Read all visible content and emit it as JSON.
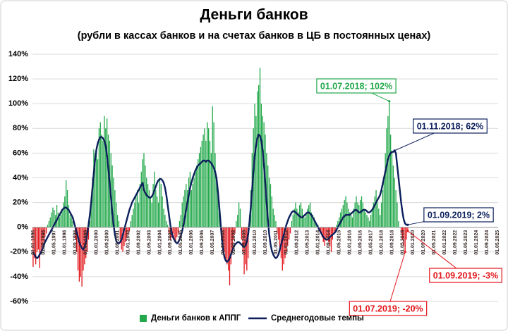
{
  "chart_data": {
    "type": "bar",
    "title": "Деньги банков",
    "subtitle": "(рубли в кассах банков и на счетах банков в ЦБ в постоянных ценах)",
    "categories": [
      "01.01.1996",
      null,
      null,
      null,
      null,
      null,
      null,
      null,
      "01.09.1996",
      null,
      null,
      null,
      null,
      null,
      null,
      null,
      "01.05.1997",
      null,
      null,
      null,
      null,
      null,
      null,
      null,
      "01.01.1998",
      null,
      null,
      null,
      null,
      null,
      null,
      null,
      "01.09.1998",
      null,
      null,
      null,
      null,
      null,
      null,
      null,
      "01.05.1999",
      null,
      null,
      null,
      null,
      null,
      null,
      null,
      "01.01.2000",
      null,
      null,
      null,
      null,
      null,
      null,
      null,
      "01.09.2000",
      null,
      null,
      null,
      null,
      null,
      null,
      null,
      "01.05.2001",
      null,
      null,
      null,
      null,
      null,
      null,
      null,
      "01.01.2002",
      null,
      null,
      null,
      null,
      null,
      null,
      null,
      "01.09.2002",
      null,
      null,
      null,
      null,
      null,
      null,
      null,
      "01.05.2003",
      null,
      null,
      null,
      null,
      null,
      null,
      null,
      "01.01.2004",
      null,
      null,
      null,
      null,
      null,
      null,
      null,
      "01.09.2004",
      null,
      null,
      null,
      null,
      null,
      null,
      null,
      "01.05.2005",
      null,
      null,
      null,
      null,
      null,
      null,
      null,
      "01.01.2006",
      null,
      null,
      null,
      null,
      null,
      null,
      null,
      "01.09.2006",
      null,
      null,
      null,
      null,
      null,
      null,
      null,
      "01.05.2007",
      null,
      null,
      null,
      null,
      null,
      null,
      null,
      "01.01.2008",
      null,
      null,
      null,
      null,
      null,
      null,
      null,
      "01.09.2008",
      null,
      null,
      null,
      null,
      null,
      null,
      null,
      "01.05.2009",
      null,
      null,
      null,
      null,
      null,
      null,
      null,
      "01.01.2010",
      null,
      null,
      null,
      null,
      null,
      null,
      null,
      "01.09.2010",
      null,
      null,
      null,
      null,
      null,
      null,
      null,
      "01.05.2011",
      null,
      null,
      null,
      null,
      null,
      null,
      null,
      "01.01.2012",
      null,
      null,
      null,
      null,
      null,
      null,
      null,
      "01.09.2012",
      null,
      null,
      null,
      null,
      null,
      null,
      null,
      "01.05.2013",
      null,
      null,
      null,
      null,
      null,
      null,
      null,
      "01.01.2014",
      null,
      null,
      null,
      null,
      null,
      null,
      null,
      "01.09.2014",
      null,
      null,
      null,
      null,
      null,
      null,
      null,
      "01.05.2015",
      null,
      null,
      null,
      null,
      null,
      null,
      null,
      "01.01.2016",
      null,
      null,
      null,
      null,
      null,
      null,
      null,
      "01.09.2016",
      null,
      null,
      null,
      null,
      null,
      null,
      null,
      "01.05.2017",
      null,
      null,
      null,
      null,
      null,
      null,
      null,
      "01.01.2018",
      null,
      null,
      null,
      null,
      null,
      null,
      null,
      "01.09.2018",
      null,
      null,
      null,
      null,
      null,
      null,
      null,
      "01.05.2019",
      null,
      null,
      null,
      null,
      null,
      null,
      null,
      "01.01.2020",
      null,
      null,
      null,
      null,
      null,
      null,
      null,
      "01.09.2020",
      null,
      null,
      null,
      null,
      null,
      null,
      null,
      "01.05.2021",
      null,
      null,
      null,
      null,
      null,
      null,
      null,
      "01.01.2022",
      null,
      null,
      null,
      null,
      null,
      null,
      null,
      "01.09.2022",
      null,
      null,
      null,
      null,
      null,
      null,
      null,
      "01.05.2023",
      null,
      null,
      null,
      null,
      null,
      null,
      null,
      "01.01.2024",
      null,
      null,
      null,
      null,
      null,
      null,
      null,
      "01.09.2024",
      null,
      null,
      null,
      null,
      null,
      null,
      null,
      "01.05.2025"
    ],
    "series": [
      {
        "name": "Деньги банков к АППГ",
        "type": "bar",
        "color": "#22a84a",
        "negative_color": "#e3151a",
        "values": [
          -32,
          -25,
          -30,
          -20,
          -18,
          -33,
          -22,
          -15,
          -12,
          -8,
          -5,
          2,
          5,
          8,
          12,
          16,
          14,
          10,
          18,
          12,
          8,
          10,
          15,
          20,
          25,
          38,
          30,
          18,
          10,
          8,
          5,
          0,
          -10,
          -20,
          -35,
          -44,
          -40,
          -48,
          -35,
          -30,
          -25,
          -20,
          -10,
          5,
          20,
          40,
          63,
          60,
          65,
          55,
          80,
          85,
          75,
          70,
          90,
          80,
          88,
          75,
          70,
          60,
          50,
          40,
          30,
          20,
          10,
          5,
          -10,
          -18,
          -20,
          -15,
          -12,
          -8,
          -5,
          -3,
          5,
          10,
          15,
          20,
          25,
          30,
          20,
          35,
          45,
          55,
          60,
          50,
          40,
          35,
          30,
          25,
          20,
          35,
          45,
          30,
          25,
          20,
          40,
          35,
          25,
          15,
          10,
          5,
          2,
          -5,
          -10,
          -8,
          -5,
          -10,
          -12,
          -8,
          -5,
          5,
          10,
          20,
          25,
          30,
          35,
          30,
          40,
          45,
          30,
          35,
          40,
          45,
          50,
          55,
          60,
          65,
          70,
          75,
          80,
          70,
          85,
          80,
          70,
          60,
          98,
          85,
          60,
          40,
          30,
          20,
          10,
          -10,
          -15,
          -20,
          -25,
          -30,
          -35,
          -47,
          -30,
          -20,
          -10,
          -5,
          5,
          10,
          20,
          15,
          -10,
          -20,
          -38,
          -30,
          -35,
          -25,
          10,
          30,
          60,
          80,
          100,
          90,
          110,
          115,
          129,
          100,
          90,
          85,
          75,
          60,
          50,
          40,
          35,
          25,
          15,
          10,
          5,
          -5,
          -10,
          -20,
          -25,
          -35,
          -30,
          -25,
          -20,
          -15,
          -10,
          -5,
          5,
          10,
          15,
          20,
          15,
          12,
          18,
          20,
          15,
          10,
          8,
          12,
          15,
          18,
          20,
          12,
          10,
          8,
          5,
          3,
          2,
          -2,
          -5,
          -8,
          -12,
          -15,
          -10,
          -8,
          -12,
          -15,
          -20,
          -10,
          -5,
          -3,
          2,
          5,
          8,
          12,
          15,
          18,
          22,
          25,
          20,
          15,
          12,
          10,
          8,
          15,
          20,
          25,
          20,
          18,
          22,
          25,
          20,
          15,
          12,
          10,
          8,
          5,
          10,
          15,
          20,
          25,
          30,
          20,
          15,
          10,
          20,
          30,
          40,
          60,
          80,
          90,
          102,
          75,
          62,
          50,
          40,
          30,
          20,
          5,
          0,
          -5,
          -10,
          -15,
          -20,
          -10,
          -3,
          null,
          null,
          null,
          null,
          null,
          null,
          null,
          null,
          null,
          null,
          null,
          null,
          null,
          null,
          null,
          null,
          null,
          null,
          null,
          null,
          null,
          null,
          null,
          null,
          null,
          null,
          null,
          null,
          null,
          null,
          null,
          null,
          null,
          null,
          null,
          null,
          null,
          null,
          null,
          null,
          null,
          null,
          null,
          null,
          null,
          null,
          null,
          null,
          null,
          null,
          null,
          null,
          null,
          null,
          null,
          null,
          null,
          null,
          null,
          null,
          null,
          null,
          null,
          null,
          null,
          null,
          null,
          null
        ]
      },
      {
        "name": "Среднегодовые темпы",
        "type": "line",
        "color": "#0c1f5c",
        "values": [
          -20,
          -22,
          -24,
          -25,
          -24,
          -22,
          -20,
          -18,
          -15,
          -12,
          -10,
          -8,
          -6,
          -4,
          -2,
          0,
          2,
          4,
          6,
          8,
          10,
          12,
          14,
          15,
          16,
          16,
          15,
          14,
          12,
          10,
          8,
          4,
          0,
          -4,
          -8,
          -12,
          -15,
          -17,
          -18,
          -16,
          -12,
          -6,
          2,
          10,
          20,
          32,
          44,
          55,
          63,
          68,
          71,
          73,
          73,
          72,
          70,
          66,
          58,
          48,
          36,
          24,
          12,
          2,
          -6,
          -11,
          -13,
          -13,
          -12,
          -10,
          -6,
          -2,
          2,
          6,
          10,
          14,
          17,
          20,
          22,
          24,
          26,
          28,
          30,
          32,
          34,
          36,
          30,
          28,
          26,
          25,
          24,
          24,
          25,
          27,
          30,
          33,
          36,
          38,
          39,
          39,
          38,
          36,
          32,
          26,
          18,
          10,
          2,
          -4,
          -8,
          -10,
          -12,
          -13,
          -12,
          -10,
          -7,
          -3,
          2,
          8,
          14,
          20,
          26,
          32,
          36,
          40,
          43,
          46,
          48,
          50,
          51,
          52,
          53,
          54,
          54,
          53,
          54,
          54,
          53,
          52,
          50,
          48,
          45,
          40,
          30,
          18,
          5,
          -8,
          -18,
          -24,
          -27,
          -28,
          -27,
          -25,
          -22,
          -19,
          -16,
          -14,
          -13,
          -12,
          -12,
          -13,
          -14,
          -15,
          -16,
          -15,
          -12,
          -6,
          4,
          16,
          30,
          45,
          58,
          66,
          72,
          75,
          74,
          70,
          62,
          50,
          36,
          20,
          6,
          -6,
          -14,
          -19,
          -22,
          -24,
          -25,
          -24,
          -22,
          -18,
          -14,
          -10,
          -6,
          -2,
          2,
          5,
          8,
          10,
          12,
          13,
          13,
          12,
          11,
          10,
          9,
          8,
          8,
          9,
          10,
          11,
          12,
          12,
          11,
          10,
          8,
          6,
          4,
          2,
          0,
          -2,
          -4,
          -6,
          -8,
          -9,
          -10,
          -10,
          -9,
          -8,
          -7,
          -6,
          -5,
          -4,
          -2,
          0,
          2,
          4,
          6,
          8,
          9,
          10,
          10,
          10,
          10,
          11,
          12,
          13,
          14,
          14,
          13,
          12,
          12,
          13,
          14,
          14,
          14,
          13,
          12,
          12,
          13,
          14,
          16,
          18,
          20,
          22,
          24,
          26,
          30,
          35,
          40,
          45,
          50,
          55,
          58,
          60,
          61,
          61,
          62,
          60,
          50,
          40,
          30,
          20,
          12,
          6,
          3,
          2,
          2,
          null,
          null,
          null,
          null,
          null,
          null,
          null,
          null,
          null,
          null,
          null,
          null,
          null,
          null,
          null,
          null,
          null,
          null,
          null,
          null,
          null,
          null,
          null,
          null,
          null,
          null,
          null,
          null,
          null,
          null,
          null,
          null,
          null,
          null,
          null,
          null,
          null,
          null,
          null,
          null,
          null,
          null,
          null,
          null,
          null,
          null,
          null,
          null,
          null,
          null,
          null,
          null,
          null,
          null,
          null,
          null,
          null,
          null,
          null,
          null,
          null,
          null,
          null,
          null,
          null,
          null,
          null,
          null
        ]
      }
    ],
    "ylim": [
      -60,
      140
    ],
    "yticks": [
      {
        "value": -60,
        "label": "-60%"
      },
      {
        "value": -40,
        "label": "-40%"
      },
      {
        "value": -20,
        "label": "-20%"
      },
      {
        "value": 0,
        "label": "0%"
      },
      {
        "value": 20,
        "label": "20%"
      },
      {
        "value": 40,
        "label": "40%"
      },
      {
        "value": 60,
        "label": "60%"
      },
      {
        "value": 80,
        "label": "80%"
      },
      {
        "value": 100,
        "label": "100%"
      },
      {
        "value": 120,
        "label": "120%"
      },
      {
        "value": 140,
        "label": "140%"
      }
    ],
    "grid": true,
    "legend": "bottom",
    "annotations": [
      {
        "text": "01.07.2018; 102%",
        "color": "#22a84a"
      },
      {
        "text": "01.11.2018; 62%",
        "color": "#0c1f5c"
      },
      {
        "text": "01.09.2019; 2%",
        "color": "#0c1f5c"
      },
      {
        "text": "01.07.2019; -20%",
        "color": "#e3151a"
      },
      {
        "text": "01.09.2019; -3%",
        "color": "#e3151a"
      }
    ]
  }
}
